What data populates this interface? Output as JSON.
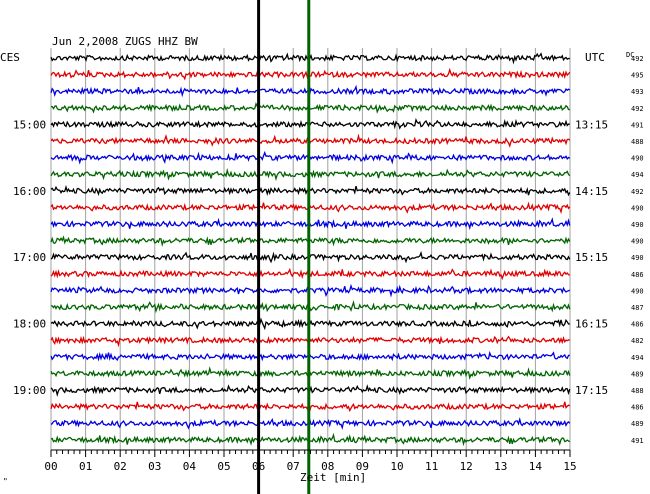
{
  "chart_data": {
    "type": "line",
    "title": "Jun 2,2008   ZUGS HHZ BW",
    "left_label": "CES",
    "right_label": "UTC",
    "dc_label": "DC",
    "xlabel": "Zeit [min]",
    "xlim": [
      0,
      15
    ],
    "x_ticks": [
      "00",
      "01",
      "02",
      "03",
      "04",
      "05",
      "06",
      "07",
      "08",
      "09",
      "10",
      "11",
      "12",
      "13",
      "14",
      "15"
    ],
    "grid": true,
    "trace_colors": [
      "#000000",
      "#e00000",
      "#0000e0",
      "#006400"
    ],
    "left_times": [
      {
        "label": "15:00",
        "row": 4
      },
      {
        "label": "16:00",
        "row": 8
      },
      {
        "label": "17:00",
        "row": 12
      },
      {
        "label": "18:00",
        "row": 16
      },
      {
        "label": "19:00",
        "row": 20
      }
    ],
    "right_times": [
      {
        "label": "13:15",
        "row": 4
      },
      {
        "label": "14:15",
        "row": 8
      },
      {
        "label": "15:15",
        "row": 12
      },
      {
        "label": "16:15",
        "row": 16
      },
      {
        "label": "17:15",
        "row": 20
      }
    ],
    "dc_values": [
      "492",
      "495",
      "493",
      "492",
      "491",
      "488",
      "490",
      "494",
      "492",
      "490",
      "490",
      "490",
      "490",
      "486",
      "490",
      "487",
      "486",
      "482",
      "494",
      "489",
      "488",
      "486",
      "489",
      "491"
    ],
    "event_markers": [
      {
        "minute": 6.0,
        "color": "#000000"
      },
      {
        "minute": 7.45,
        "color": "#006400"
      }
    ],
    "corner_mark": "\""
  }
}
